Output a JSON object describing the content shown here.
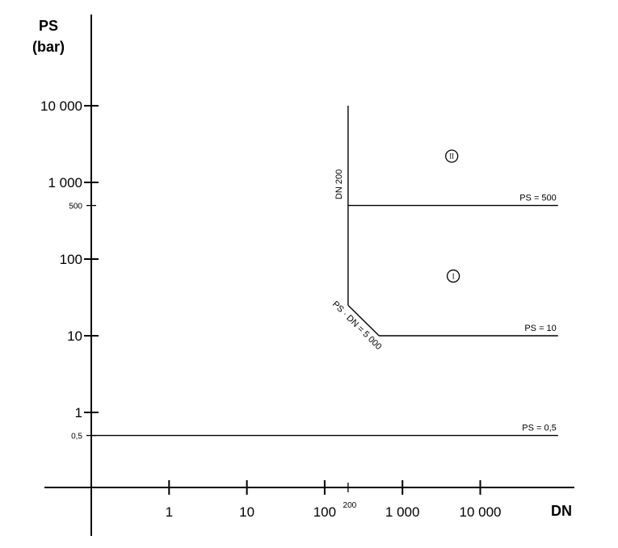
{
  "chart_data": {
    "type": "line",
    "xlabel": "DN",
    "ylabel": [
      "PS",
      "(bar)"
    ],
    "x_scale": "log",
    "y_scale": "log",
    "x_ticks": [
      {
        "value": 1,
        "label": "1"
      },
      {
        "value": 10,
        "label": "10"
      },
      {
        "value": 100,
        "label": "100"
      },
      {
        "value": 1000,
        "label": "1 000"
      },
      {
        "value": 10000,
        "label": "10 000"
      }
    ],
    "x_extra_ticks": [
      {
        "value": 200,
        "label": "200"
      }
    ],
    "y_ticks": [
      {
        "value": 1,
        "label": "1"
      },
      {
        "value": 10,
        "label": "10"
      },
      {
        "value": 100,
        "label": "100"
      },
      {
        "value": 1000,
        "label": "1 000"
      },
      {
        "value": 10000,
        "label": "10 000"
      }
    ],
    "y_extra_ticks": [
      {
        "value": 0.5,
        "label": "0,5"
      },
      {
        "value": 500,
        "label": "500"
      }
    ],
    "series": [
      {
        "label": "PS = 0,5",
        "points": [
          [
            0.1,
            0.5
          ],
          [
            100000,
            0.5
          ]
        ]
      },
      {
        "label": "PS = 10",
        "points": [
          [
            500,
            10
          ],
          [
            100000,
            10
          ]
        ]
      },
      {
        "label": "PS = 500",
        "points": [
          [
            200,
            500
          ],
          [
            100000,
            500
          ]
        ]
      },
      {
        "label": "DN 200",
        "points": [
          [
            200,
            25
          ],
          [
            200,
            10000
          ]
        ]
      },
      {
        "label": "PS · DN = 5 000",
        "points": [
          [
            200,
            25
          ],
          [
            500,
            10
          ]
        ]
      }
    ],
    "regions": [
      {
        "label": "I",
        "x": 4500,
        "y": 60
      },
      {
        "label": "II",
        "x": 4300,
        "y": 2200
      }
    ]
  }
}
